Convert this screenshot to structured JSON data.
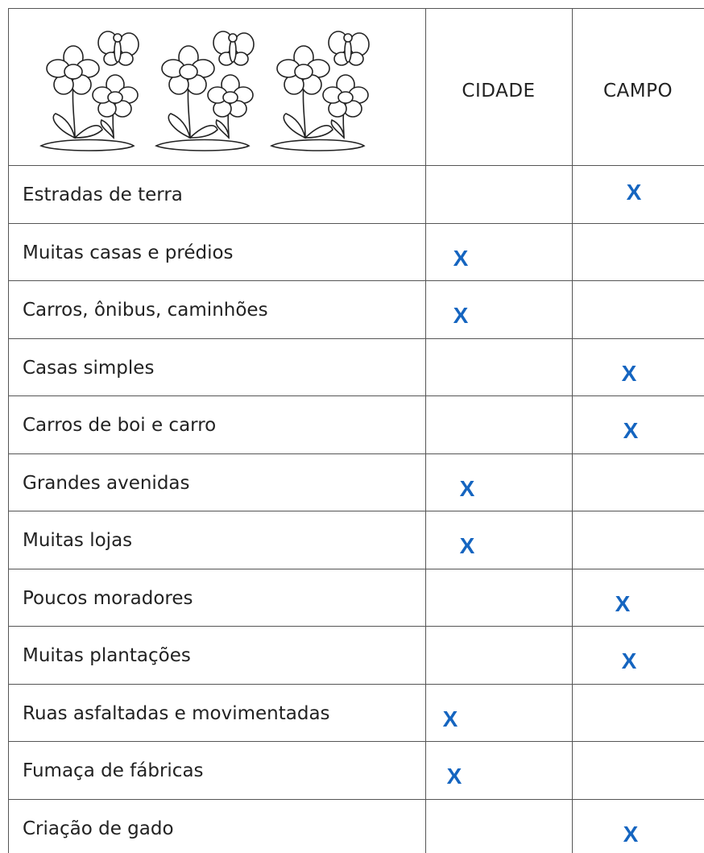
{
  "table": {
    "columns": [
      "CIDADE",
      "CAMPO"
    ],
    "rows": [
      [
        "Estradas de terra",
        null,
        "X"
      ],
      [
        "Muitas casas e prédios",
        "X",
        null
      ],
      [
        "Carros, ônibus, caminhões",
        "X",
        null
      ],
      [
        "Casas simples",
        null,
        "X"
      ],
      [
        "Carros de boi e carro",
        null,
        "X"
      ],
      [
        "Grandes avenidas",
        "X",
        null
      ],
      [
        "Muitas lojas",
        "X",
        null
      ],
      [
        "Poucos moradores",
        null,
        "X"
      ],
      [
        "Muitas plantações",
        null,
        "X"
      ],
      [
        "Ruas asfaltadas e movimentadas",
        "X",
        null
      ],
      [
        "Fumaça de fábricas",
        "X",
        null
      ],
      [
        "Criação de gado",
        null,
        "X"
      ]
    ]
  }
}
